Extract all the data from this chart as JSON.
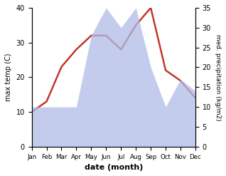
{
  "months": [
    "Jan",
    "Feb",
    "Mar",
    "Apr",
    "May",
    "Jun",
    "Jul",
    "Aug",
    "Sep",
    "Oct",
    "Nov",
    "Dec"
  ],
  "x": [
    1,
    2,
    3,
    4,
    5,
    6,
    7,
    8,
    9,
    10,
    11,
    12
  ],
  "temperature": [
    10,
    13,
    23,
    28,
    32,
    32,
    28,
    35,
    40,
    22,
    19,
    14
  ],
  "precipitation": [
    10,
    10,
    10,
    10,
    28,
    35,
    30,
    35,
    20,
    10,
    17,
    14
  ],
  "temp_color": "#c0392b",
  "precip_color": "#b0bce8",
  "temp_ylim": [
    0,
    40
  ],
  "temp_yticks": [
    0,
    10,
    20,
    30,
    40
  ],
  "precip_ylim": [
    0,
    35
  ],
  "precip_yticks": [
    0,
    5,
    10,
    15,
    20,
    25,
    30,
    35
  ],
  "xlabel": "date (month)",
  "ylabel_left": "max temp (C)",
  "ylabel_right": "med. precipitation (kg/m2)",
  "line_width": 1.8,
  "fig_width": 3.18,
  "fig_height": 2.47,
  "dpi": 100
}
